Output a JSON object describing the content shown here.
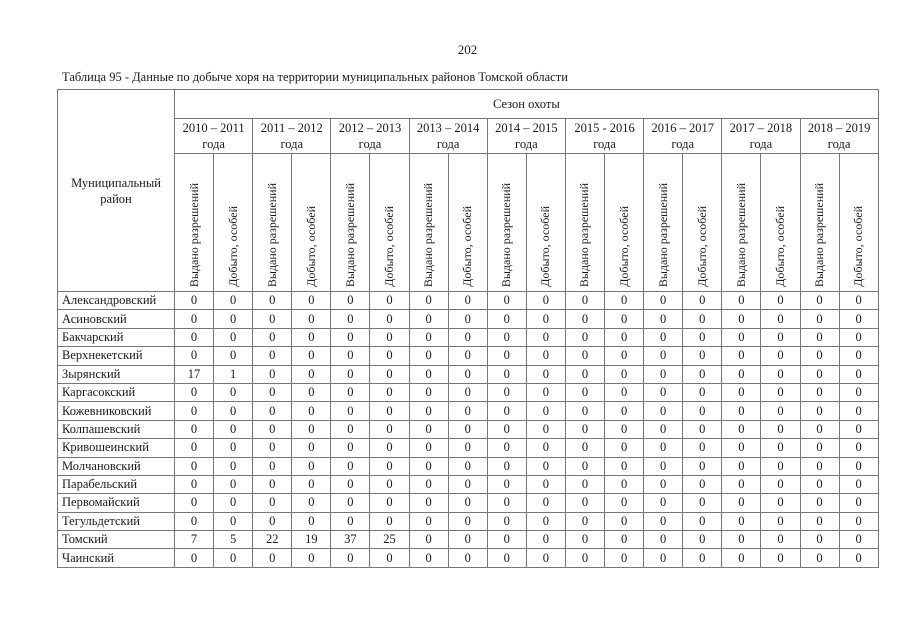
{
  "page": {
    "number": "202",
    "caption": "Таблица 95 - Данные по добыче хоря на территории муниципальных районов Томской области"
  },
  "table": {
    "region_header": "Муниципальный район",
    "season_group_header": "Сезон охоты",
    "seasons": [
      {
        "years": "2010 – 2011",
        "suffix": "года"
      },
      {
        "years": "2011 – 2012",
        "suffix": "года"
      },
      {
        "years": "2012 – 2013",
        "suffix": "года"
      },
      {
        "years": "2013 – 2014",
        "suffix": "года"
      },
      {
        "years": "2014 – 2015",
        "suffix": "года"
      },
      {
        "years": "2015 - 2016",
        "suffix": "года"
      },
      {
        "years": "2016 – 2017",
        "suffix": "года"
      },
      {
        "years": "2017 – 2018",
        "suffix": "года"
      },
      {
        "years": "2018 – 2019",
        "suffix": "года"
      }
    ],
    "sub_headers": {
      "issued": "Выдано разрешений",
      "harvested": "Добыто, особей"
    },
    "rows": [
      {
        "region": "Александровский",
        "values": [
          0,
          0,
          0,
          0,
          0,
          0,
          0,
          0,
          0,
          0,
          0,
          0,
          0,
          0,
          0,
          0,
          0,
          0
        ]
      },
      {
        "region": "Асиновский",
        "values": [
          0,
          0,
          0,
          0,
          0,
          0,
          0,
          0,
          0,
          0,
          0,
          0,
          0,
          0,
          0,
          0,
          0,
          0
        ]
      },
      {
        "region": "Бакчарский",
        "values": [
          0,
          0,
          0,
          0,
          0,
          0,
          0,
          0,
          0,
          0,
          0,
          0,
          0,
          0,
          0,
          0,
          0,
          0
        ]
      },
      {
        "region": "Верхнекетский",
        "values": [
          0,
          0,
          0,
          0,
          0,
          0,
          0,
          0,
          0,
          0,
          0,
          0,
          0,
          0,
          0,
          0,
          0,
          0
        ]
      },
      {
        "region": "Зырянский",
        "values": [
          17,
          1,
          0,
          0,
          0,
          0,
          0,
          0,
          0,
          0,
          0,
          0,
          0,
          0,
          0,
          0,
          0,
          0
        ]
      },
      {
        "region": "Каргасокский",
        "values": [
          0,
          0,
          0,
          0,
          0,
          0,
          0,
          0,
          0,
          0,
          0,
          0,
          0,
          0,
          0,
          0,
          0,
          0
        ]
      },
      {
        "region": "Кожевниковский",
        "values": [
          0,
          0,
          0,
          0,
          0,
          0,
          0,
          0,
          0,
          0,
          0,
          0,
          0,
          0,
          0,
          0,
          0,
          0
        ]
      },
      {
        "region": "Колпашевский",
        "values": [
          0,
          0,
          0,
          0,
          0,
          0,
          0,
          0,
          0,
          0,
          0,
          0,
          0,
          0,
          0,
          0,
          0,
          0
        ]
      },
      {
        "region": "Кривошеинский",
        "values": [
          0,
          0,
          0,
          0,
          0,
          0,
          0,
          0,
          0,
          0,
          0,
          0,
          0,
          0,
          0,
          0,
          0,
          0
        ]
      },
      {
        "region": "Молчановский",
        "values": [
          0,
          0,
          0,
          0,
          0,
          0,
          0,
          0,
          0,
          0,
          0,
          0,
          0,
          0,
          0,
          0,
          0,
          0
        ]
      },
      {
        "region": "Парабельский",
        "values": [
          0,
          0,
          0,
          0,
          0,
          0,
          0,
          0,
          0,
          0,
          0,
          0,
          0,
          0,
          0,
          0,
          0,
          0
        ]
      },
      {
        "region": "Первомайский",
        "values": [
          0,
          0,
          0,
          0,
          0,
          0,
          0,
          0,
          0,
          0,
          0,
          0,
          0,
          0,
          0,
          0,
          0,
          0
        ]
      },
      {
        "region": "Тегульдетский",
        "values": [
          0,
          0,
          0,
          0,
          0,
          0,
          0,
          0,
          0,
          0,
          0,
          0,
          0,
          0,
          0,
          0,
          0,
          0
        ]
      },
      {
        "region": "Томский",
        "values": [
          7,
          5,
          22,
          19,
          37,
          25,
          0,
          0,
          0,
          0,
          0,
          0,
          0,
          0,
          0,
          0,
          0,
          0
        ]
      },
      {
        "region": "Чаинский",
        "values": [
          0,
          0,
          0,
          0,
          0,
          0,
          0,
          0,
          0,
          0,
          0,
          0,
          0,
          0,
          0,
          0,
          0,
          0
        ]
      }
    ]
  }
}
